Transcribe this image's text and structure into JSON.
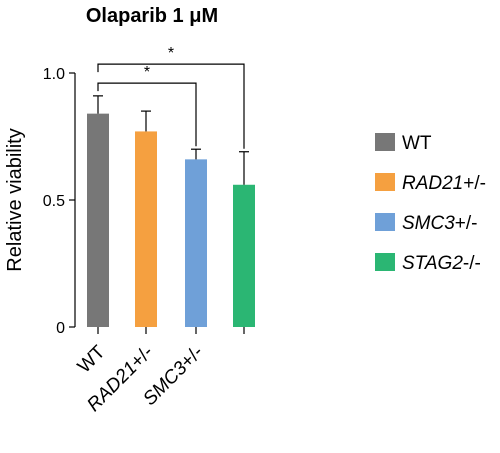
{
  "chart_data": {
    "type": "bar",
    "title": "Olaparib 1 μM",
    "ylabel": "Relative viability",
    "ylim": [
      0,
      1.0
    ],
    "yticks": [
      {
        "value": 0,
        "label": "0"
      },
      {
        "value": 0.5,
        "label": "0.5"
      },
      {
        "value": 1.0,
        "label": "1.0"
      }
    ],
    "categories": [
      {
        "italic": "",
        "plain": "WT"
      },
      {
        "italic": "RAD21",
        "plain": "+/-"
      },
      {
        "italic": "SMC3",
        "plain": "+/-"
      },
      {
        "italic": "",
        "plain": ""
      }
    ],
    "bars": [
      {
        "value": 0.84,
        "err": 0.07,
        "color": "#777777"
      },
      {
        "value": 0.77,
        "err": 0.08,
        "color": "#f5a040"
      },
      {
        "value": 0.66,
        "err": 0.04,
        "color": "#6fa0d8"
      },
      {
        "value": 0.56,
        "err": 0.13,
        "color": "#2bb673"
      }
    ],
    "significance": [
      {
        "from": 0,
        "to": 2,
        "label": "*"
      },
      {
        "from": 0,
        "to": 3,
        "label": "*"
      }
    ],
    "legend": [
      {
        "italic": "",
        "plain": "WT",
        "color": "#777777"
      },
      {
        "italic": "RAD21",
        "plain": "+/-",
        "color": "#f5a040"
      },
      {
        "italic": "SMC3",
        "plain": "+/-",
        "color": "#6fa0d8"
      },
      {
        "italic": "STAG2",
        "plain": "-/-",
        "color": "#2bb673"
      }
    ]
  }
}
